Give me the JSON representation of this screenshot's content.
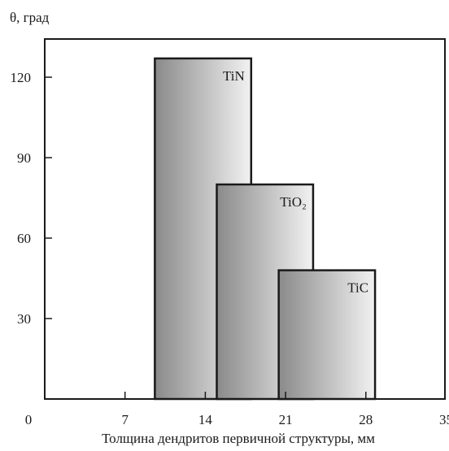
{
  "chart_data": {
    "type": "bar",
    "ylabel": "θ, град",
    "xlabel": "Толщина дендритов первичной структуры, мм",
    "xlim": [
      0,
      35
    ],
    "ylim": [
      0,
      130
    ],
    "x_ticks": [
      0,
      7,
      14,
      21,
      28,
      35
    ],
    "x_tick_labels": [
      "0",
      "7",
      "14",
      "21",
      "28",
      "35"
    ],
    "y_ticks": [
      30,
      60,
      90,
      120
    ],
    "y_tick_labels": [
      "30",
      "60",
      "90",
      "120"
    ],
    "grid": false,
    "series": [
      {
        "name": "TiN",
        "x_start": 9.6,
        "x_end": 18.0,
        "value": 127
      },
      {
        "name": "TiO₂",
        "x_start": 15.0,
        "x_end": 23.4,
        "value": 80
      },
      {
        "name": "TiC",
        "x_start": 20.4,
        "x_end": 28.8,
        "value": 48
      }
    ],
    "colors": {
      "bar_dark": "#8a8a8a",
      "bar_light": "#f2f2f2",
      "outline": "#1a1a1a"
    }
  }
}
